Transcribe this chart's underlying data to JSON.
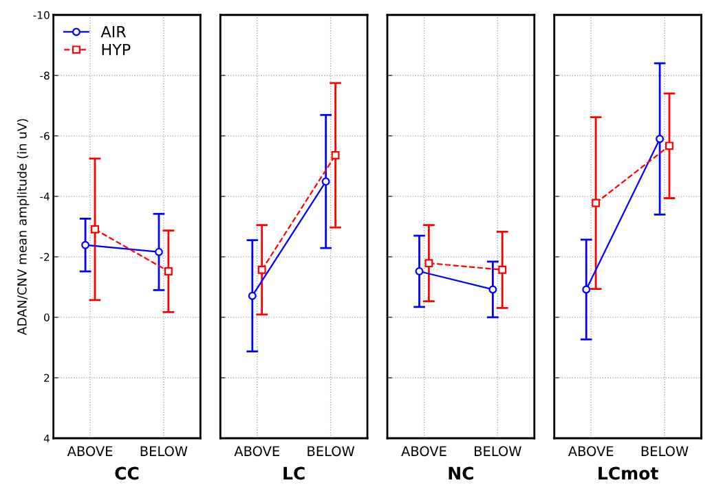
{
  "chart_data": [
    {
      "type": "line",
      "xlabel": "CC",
      "ylabel": "ADAN/CNV mean amplitude (in uV)",
      "categories": [
        "ABOVE",
        "BELOW"
      ],
      "ylim": [
        4,
        -10
      ],
      "yticks": [
        -10,
        -8,
        -6,
        -4,
        -2,
        0,
        2,
        4
      ],
      "grid": true,
      "legend": "top left",
      "series": [
        {
          "name": "AIR",
          "color": "#0000ff",
          "values": [
            -2.39,
            -2.16
          ],
          "errors": [
            0.87,
            1.26
          ],
          "marker": "circle",
          "line_style": "solid"
        },
        {
          "name": "HYP",
          "color": "#ff0000",
          "values": [
            -2.91,
            -1.52
          ],
          "errors": [
            2.34,
            1.35
          ],
          "marker": "square",
          "line_style": "dashed"
        }
      ]
    },
    {
      "type": "line",
      "xlabel": "LC",
      "categories": [
        "ABOVE",
        "BELOW"
      ],
      "ylim": [
        4,
        -10
      ],
      "yticks": [
        -10,
        -8,
        -6,
        -4,
        -2,
        0,
        2,
        4
      ],
      "grid": true,
      "tick_labels": "x",
      "series": [
        {
          "color": "#0000ff",
          "values": [
            -0.71,
            -4.49
          ],
          "errors": [
            1.84,
            2.2
          ],
          "marker": "circle",
          "line_style": "solid"
        },
        {
          "color": "#ff0000",
          "values": [
            -1.57,
            -5.36
          ],
          "errors": [
            1.48,
            2.39
          ],
          "marker": "square",
          "line_style": "dashed"
        }
      ]
    },
    {
      "type": "line",
      "xlabel": "NC",
      "categories": [
        "ABOVE",
        "BELOW"
      ],
      "ylim": [
        4,
        -10
      ],
      "yticks": [
        -10,
        -8,
        -6,
        -4,
        -2,
        0,
        2,
        4
      ],
      "grid": true,
      "tick_labels": "x",
      "series": [
        {
          "color": "#0000ff",
          "values": [
            -1.52,
            -0.92
          ],
          "errors": [
            1.18,
            0.92
          ],
          "marker": "circle",
          "line_style": "solid"
        },
        {
          "color": "#ff0000",
          "values": [
            -1.79,
            -1.57
          ],
          "errors": [
            1.26,
            1.26
          ],
          "marker": "square",
          "line_style": "dashed"
        }
      ]
    },
    {
      "type": "line",
      "xlabel": "LCmot",
      "categories": [
        "ABOVE",
        "BELOW"
      ],
      "ylim": [
        4,
        -10
      ],
      "yticks": [
        -10,
        -8,
        -6,
        -4,
        -2,
        0,
        2,
        4
      ],
      "grid": true,
      "tick_labels": "x",
      "series": [
        {
          "color": "#0000ff",
          "values": [
            -0.92,
            -5.9
          ],
          "errors": [
            1.65,
            2.5
          ],
          "marker": "circle",
          "line_style": "solid"
        },
        {
          "color": "#ff0000",
          "values": [
            -3.78,
            -5.67
          ],
          "errors": [
            2.84,
            1.73
          ],
          "marker": "square",
          "line_style": "dashed"
        }
      ]
    }
  ]
}
